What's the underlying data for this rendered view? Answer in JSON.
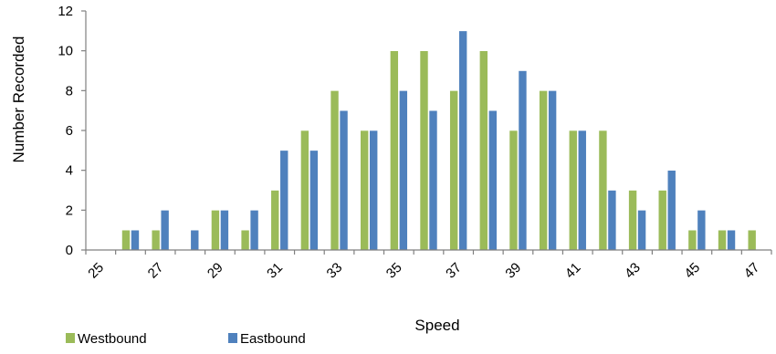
{
  "chart_data": {
    "type": "bar",
    "title": "",
    "xlabel": "Speed",
    "ylabel": "Number Recorded",
    "categories": [
      "25",
      "26",
      "27",
      "28",
      "29",
      "30",
      "31",
      "32",
      "33",
      "34",
      "35",
      "36",
      "37",
      "38",
      "39",
      "40",
      "41",
      "42",
      "43",
      "44",
      "45",
      "46",
      "47"
    ],
    "x_tick_labels": [
      "25",
      "27",
      "29",
      "31",
      "33",
      "35",
      "37",
      "39",
      "41",
      "43",
      "45",
      "47"
    ],
    "y_ticks": [
      0,
      2,
      4,
      6,
      8,
      10,
      12
    ],
    "ylim": [
      0,
      12
    ],
    "grid": false,
    "legend": "bottom-left",
    "series": [
      {
        "name": "Westbound",
        "color": "#9bbb59",
        "values": [
          0,
          1,
          1,
          0,
          2,
          1,
          3,
          6,
          8,
          6,
          10,
          10,
          8,
          10,
          6,
          8,
          6,
          6,
          3,
          3,
          1,
          1,
          1
        ]
      },
      {
        "name": "Eastbound",
        "color": "#4f81bd",
        "values": [
          0,
          1,
          2,
          1,
          2,
          2,
          5,
          5,
          7,
          6,
          8,
          7,
          11,
          7,
          9,
          8,
          6,
          3,
          2,
          4,
          2,
          1,
          0
        ]
      }
    ]
  }
}
